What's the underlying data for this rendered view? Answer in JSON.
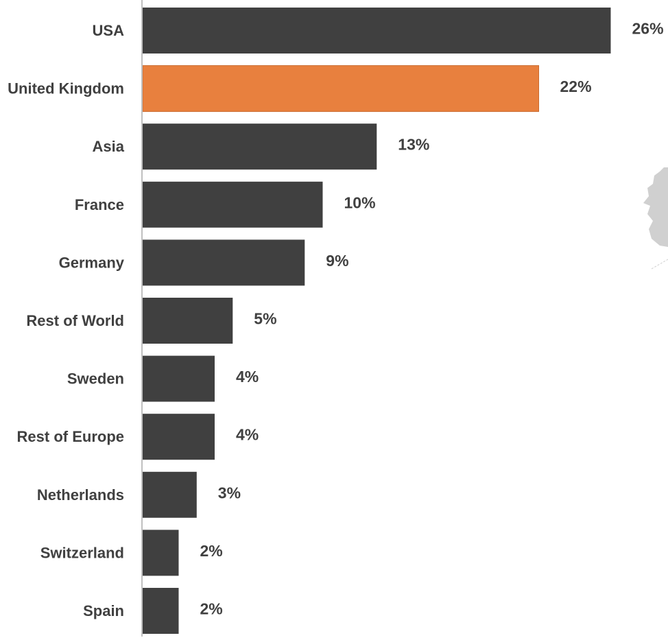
{
  "chart_data": {
    "type": "bar",
    "orientation": "horizontal",
    "categories": [
      "USA",
      "United Kingdom",
      "Asia",
      "France",
      "Germany",
      "Rest of World",
      "Sweden",
      "Rest of Europe",
      "Netherlands",
      "Switzerland",
      "Spain"
    ],
    "values": [
      26,
      22,
      13,
      10,
      9,
      5,
      4,
      4,
      3,
      2,
      2
    ],
    "value_labels": [
      "26%",
      "22%",
      "13%",
      "10%",
      "9%",
      "5%",
      "4%",
      "4%",
      "3%",
      "2%",
      "2%"
    ],
    "unit": "%",
    "highlight_index": 1,
    "colors": {
      "bar": "#404040",
      "highlight": "#E8803E",
      "highlight_border": "#C9692D",
      "axis": "#BFBFBF",
      "label": "#404040",
      "map_shape": "#D0D0D0"
    },
    "grid": false,
    "legend": "none",
    "decoration": "grey-map-fragment-right"
  }
}
